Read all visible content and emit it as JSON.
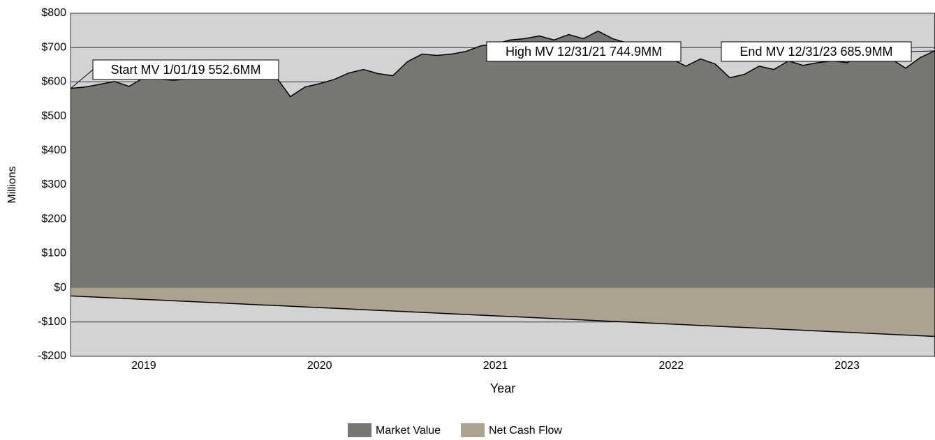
{
  "chart_data": {
    "type": "area",
    "x_label": "Year",
    "y_label": "Millions",
    "categories": [
      null,
      null,
      null,
      null,
      null,
      "2019",
      null,
      null,
      null,
      null,
      null,
      null,
      null,
      null,
      null,
      null,
      null,
      "2020",
      null,
      null,
      null,
      null,
      null,
      null,
      null,
      null,
      null,
      null,
      null,
      "2021",
      null,
      null,
      null,
      null,
      null,
      null,
      null,
      null,
      null,
      null,
      null,
      "2022",
      null,
      null,
      null,
      null,
      null,
      null,
      null,
      null,
      null,
      null,
      null,
      "2023",
      null,
      null,
      null,
      null,
      null,
      null
    ],
    "series": [
      {
        "name": "Market Value",
        "color": "#777673",
        "values": [
          581,
          585,
          593,
          601,
          587,
          612,
          608,
          605,
          608,
          614,
          618,
          620,
          622,
          626,
          616,
          557,
          585,
          595,
          607,
          626,
          636,
          624,
          618,
          659,
          681,
          677,
          681,
          689,
          705,
          711,
          722,
          726,
          734,
          722,
          738,
          726,
          748,
          726,
          713,
          697,
          677,
          667,
          646,
          667,
          652,
          612,
          622,
          646,
          636,
          661,
          648,
          656,
          661,
          656,
          677,
          693,
          667,
          640,
          671,
          691
        ]
      },
      {
        "name": "Net Cash Flow",
        "color": "#aca291",
        "values": [
          -24,
          -26,
          -28,
          -30,
          -32,
          -34,
          -36,
          -38,
          -40,
          -42,
          -44,
          -46,
          -48,
          -50,
          -52,
          -54,
          -56,
          -58,
          -60,
          -62,
          -64,
          -66,
          -68,
          -70,
          -72,
          -74,
          -76,
          -78,
          -80,
          -82,
          -84,
          -86,
          -88,
          -90,
          -92,
          -94,
          -96,
          -98,
          -100,
          -102,
          -104,
          -106,
          -108,
          -110,
          -112,
          -114,
          -116,
          -118,
          -120,
          -122,
          -124,
          -126,
          -128,
          -130,
          -132,
          -134,
          -136,
          -138,
          -140,
          -142
        ]
      }
    ],
    "annotations": [
      "Start MV 1/01/19 552.6MM",
      "High MV 12/31/21 744.9MM",
      "End MV 12/31/23 685.9MM"
    ],
    "ylim": [
      -200,
      800
    ],
    "yticks": [
      {
        "value": -200,
        "label": "-$200"
      },
      {
        "value": -100,
        "label": "-$100"
      },
      {
        "value": 0,
        "label": "$0"
      },
      {
        "value": 100,
        "label": "$100"
      },
      {
        "value": 200,
        "label": "$200"
      },
      {
        "value": 300,
        "label": "$300"
      },
      {
        "value": 400,
        "label": "$400"
      },
      {
        "value": 500,
        "label": "$500"
      },
      {
        "value": 600,
        "label": "$600"
      },
      {
        "value": 700,
        "label": "$700"
      },
      {
        "value": 800,
        "label": "$800"
      }
    ],
    "grid": true,
    "legend": "bottom"
  }
}
